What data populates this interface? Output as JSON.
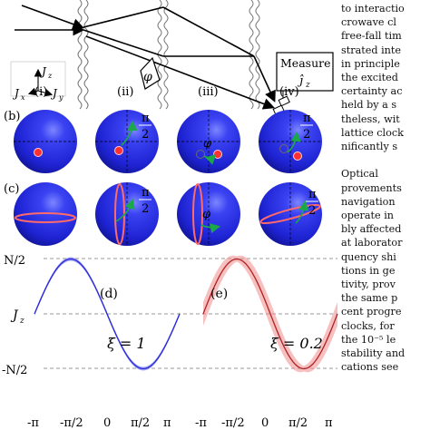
{
  "figure": {
    "measure_label": "Measure",
    "measure_operator": "ĵ",
    "measure_subscript": "z",
    "phase_symbol": "φ",
    "axes": {
      "jz": "J",
      "jz_sub": "z",
      "jx": "J",
      "jx_sub": "x",
      "jy": "J",
      "jy_sub": "y"
    },
    "row_labels": {
      "b": "(b)",
      "c": "(c)"
    },
    "columns": [
      "(i)",
      "(ii)",
      "(iii)",
      "(iv)"
    ],
    "pi_over_2": {
      "num": "π",
      "den": "2"
    },
    "panel_d": {
      "label": "(d)",
      "xi": "ξ = 1"
    },
    "panel_e": {
      "label": "(e)",
      "xi": "ξ = 0.2"
    },
    "y_axis": {
      "top": "N/2",
      "mid": "J",
      "mid_sub": "z",
      "bottom": "-N/2"
    },
    "x_ticks": [
      "-π",
      "-π/2",
      "0",
      "π/2",
      "π"
    ],
    "colors": {
      "sphere": "#1f25e6",
      "band_blue": "#5a5cf0",
      "band_red": "#f08c8c",
      "arrow": "#1aa84a"
    }
  },
  "side_text": [
    "to interactio",
    "crowave cl",
    "free-fall tim",
    "strated inte",
    "in principle",
    "the excited",
    "certainty ac",
    "held by a s",
    "theless, wit",
    "lattice clock",
    "nificantly s",
    "",
    "   Optical",
    "provements",
    "navigation",
    "operate in",
    "bly affected",
    "at laborator",
    "quency shi",
    "tions in ge",
    "tivity, prov",
    "the same p",
    "cent progre",
    "clocks, for",
    "the 10⁻⁵ le",
    "stability and",
    "cations see"
  ],
  "chart_data": [
    {
      "type": "line",
      "title": "(d)",
      "annotation": "ξ = 1",
      "x_ticks": [
        "-π",
        "-π/2",
        "0",
        "π/2",
        "π"
      ],
      "y_ticks": [
        "N/2",
        "J_z",
        "-N/2"
      ],
      "series": [
        {
          "x": [
            -3.14,
            -2.36,
            -1.57,
            -0.79,
            0,
            0.79,
            1.57,
            2.36,
            3.14
          ],
          "values": [
            0,
            -0.35,
            -0.5,
            -0.35,
            0,
            0.35,
            0.5,
            0.35,
            0
          ]
        }
      ]
    },
    {
      "type": "line",
      "title": "(e)",
      "annotation": "ξ = 0.2",
      "x_ticks": [
        "-π",
        "-π/2",
        "0",
        "π/2",
        "π"
      ],
      "y_ticks": [
        "N/2",
        "J_z",
        "-N/2"
      ],
      "series": [
        {
          "x": [
            -3.14,
            -2.36,
            -1.57,
            -0.79,
            0,
            0.79,
            1.57,
            2.36,
            3.14
          ],
          "values": [
            0,
            -0.35,
            -0.5,
            -0.35,
            0,
            0.35,
            0.5,
            0.35,
            0
          ]
        }
      ]
    }
  ]
}
